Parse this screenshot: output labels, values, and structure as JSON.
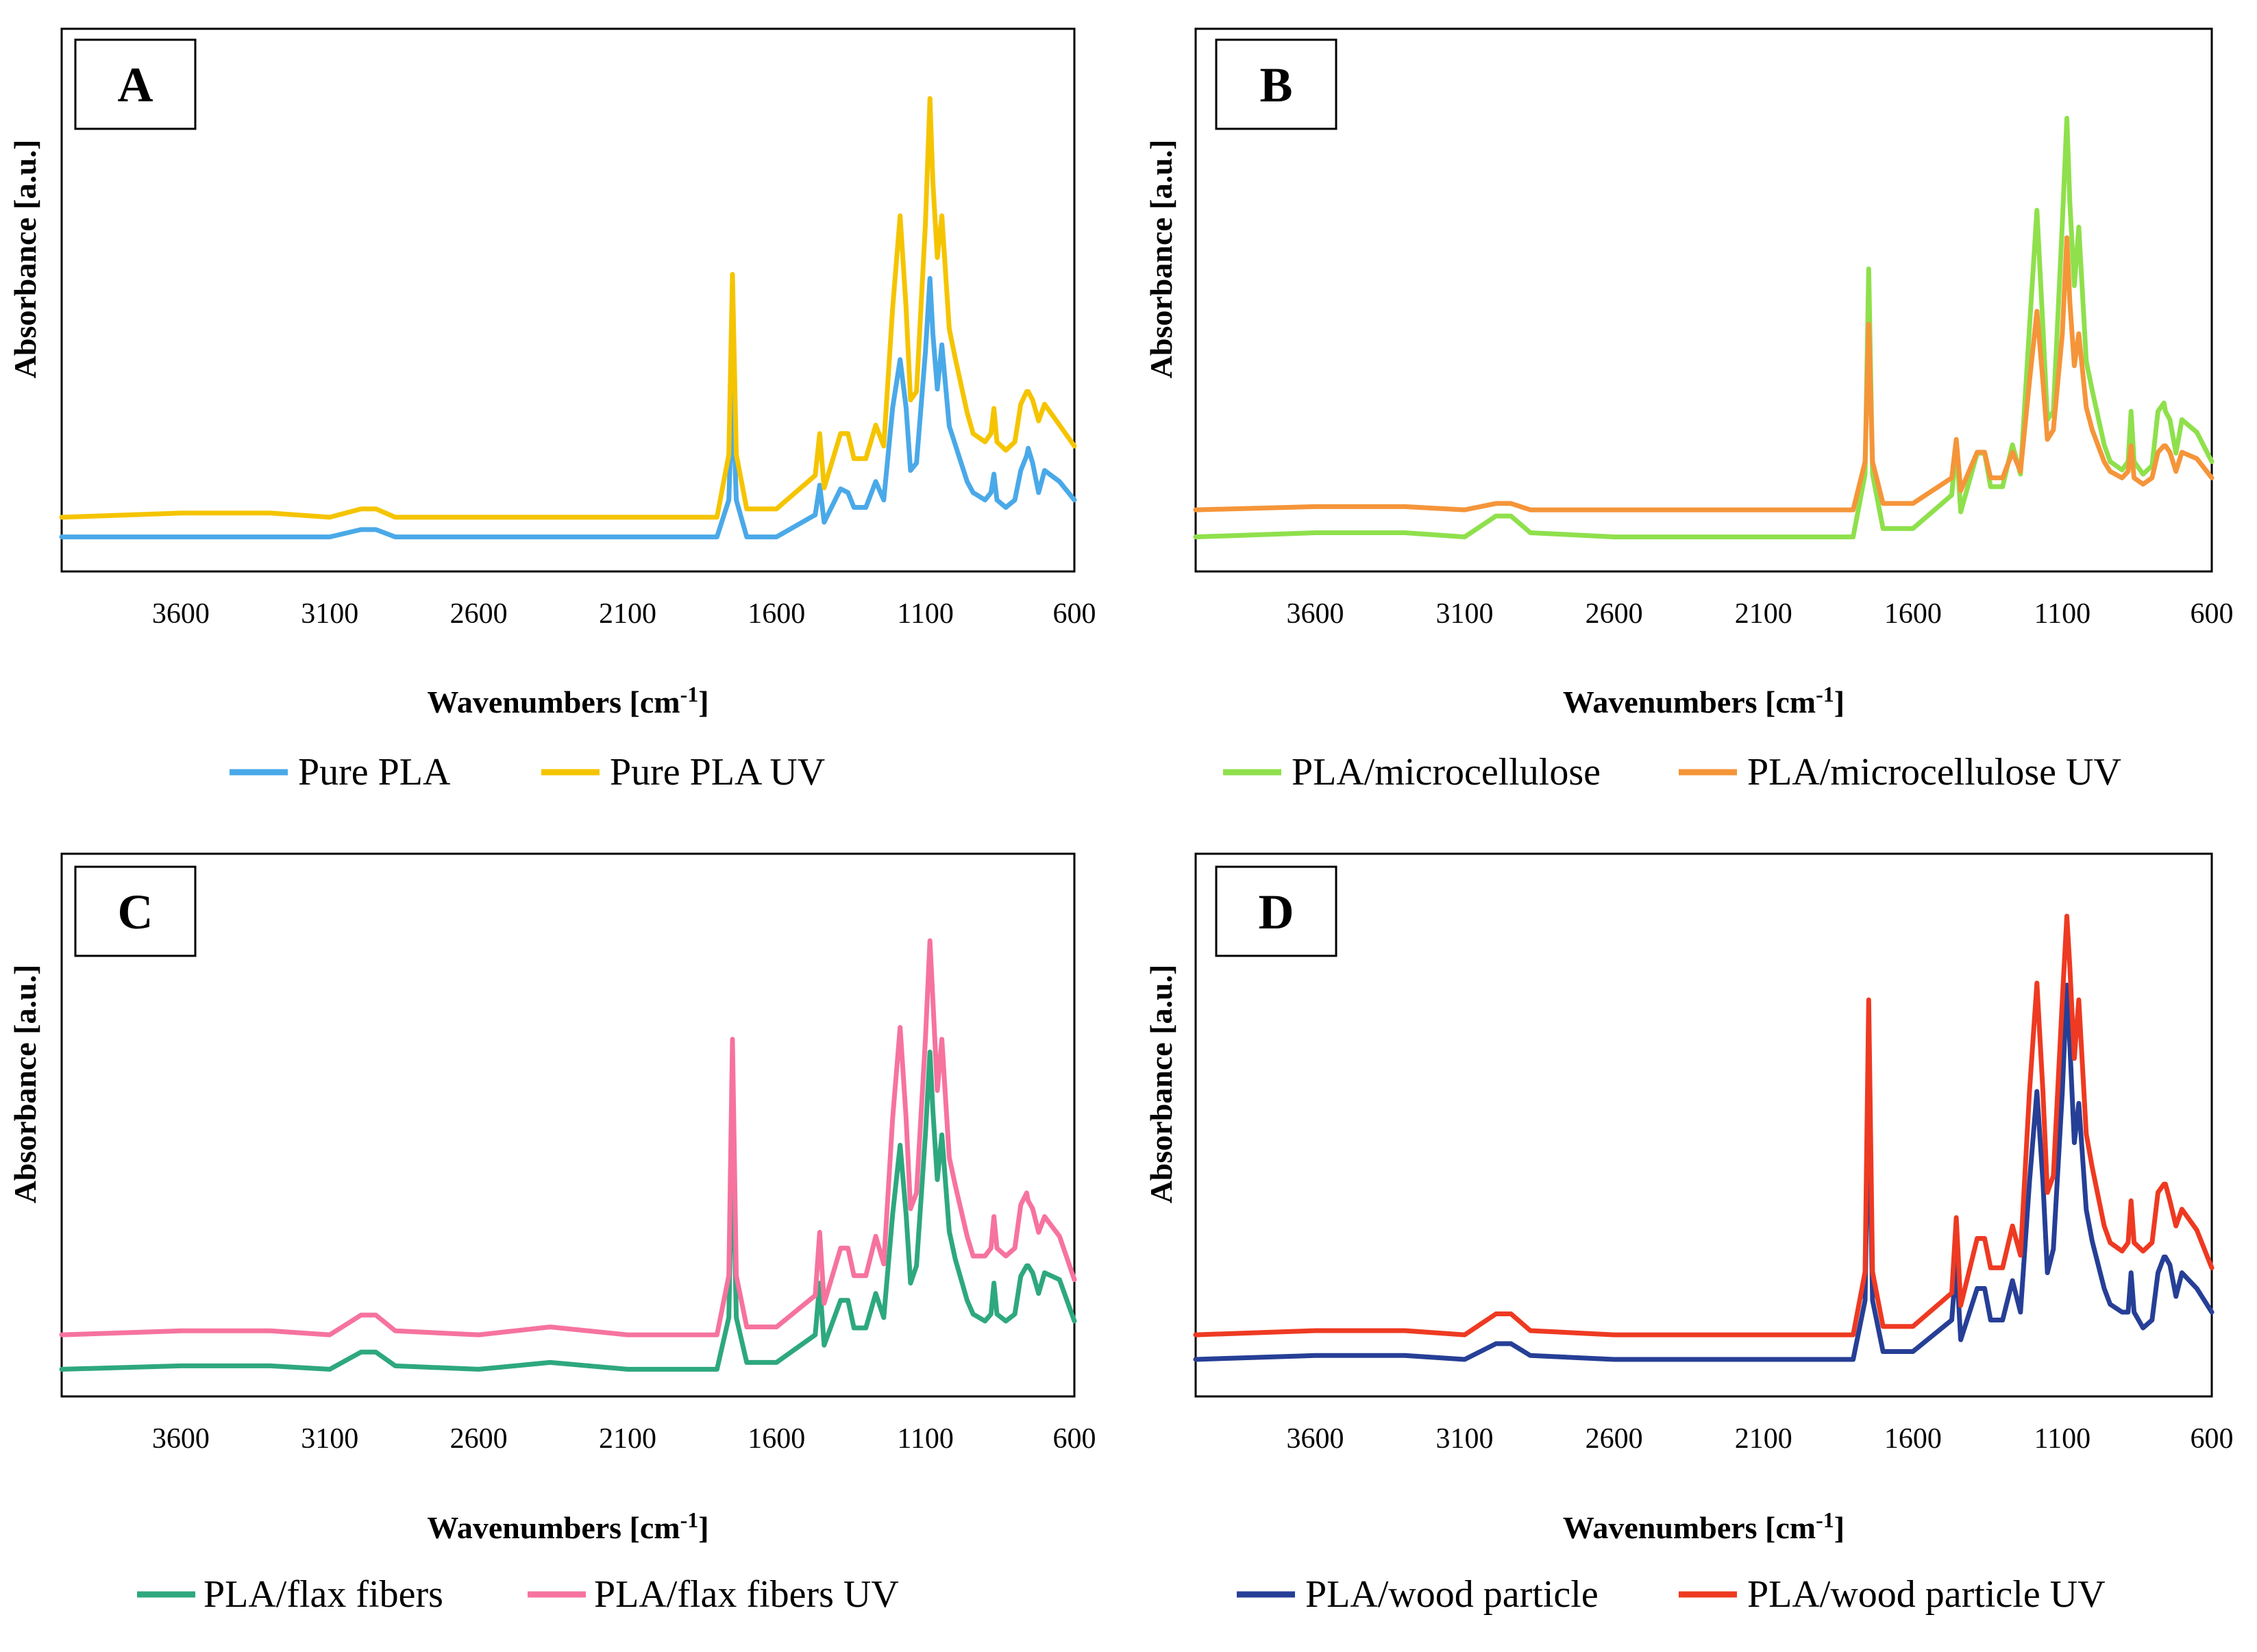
{
  "figure_title": "",
  "chart_data": [
    {
      "type": "line",
      "panel": "A",
      "xlabel": "Wavenumbers [cm-1]",
      "xlabel_main": "Wavenumbers [cm",
      "xlabel_sup": "-1",
      "xlabel_end": "]",
      "ylabel": "Absorbance  [a.u.]",
      "xlim": [
        4000,
        600
      ],
      "x_reversed": true,
      "ylim": [
        0,
        1
      ],
      "xticks": [
        3600,
        3100,
        2600,
        2100,
        1600,
        1100,
        600
      ],
      "series": [
        {
          "name": "Pure PLA",
          "color": "#4aa9e8",
          "baseline": 0.045,
          "scale": 0.75,
          "x": [
            4000,
            3600,
            3300,
            3100,
            2995,
            2945,
            2880,
            2600,
            2360,
            2100,
            1800,
            1760,
            1748,
            1735,
            1700,
            1650,
            1600,
            1470,
            1455,
            1440,
            1385,
            1360,
            1340,
            1300,
            1267,
            1240,
            1210,
            1185,
            1165,
            1150,
            1130,
            1100,
            1085,
            1075,
            1060,
            1045,
            1020,
            1000,
            960,
            940,
            900,
            880,
            870,
            860,
            830,
            800,
            780,
            760,
            755,
            740,
            720,
            700,
            650,
            600
          ],
          "y": [
            0.0,
            0.0,
            0.0,
            0.0,
            0.02,
            0.02,
            0.0,
            0.0,
            0.0,
            0.0,
            0.0,
            0.1,
            0.4,
            0.1,
            0.0,
            0.0,
            0.0,
            0.06,
            0.14,
            0.04,
            0.13,
            0.12,
            0.08,
            0.08,
            0.15,
            0.1,
            0.35,
            0.48,
            0.35,
            0.18,
            0.2,
            0.5,
            0.7,
            0.55,
            0.4,
            0.52,
            0.3,
            0.25,
            0.15,
            0.12,
            0.1,
            0.12,
            0.17,
            0.1,
            0.08,
            0.1,
            0.18,
            0.22,
            0.24,
            0.2,
            0.12,
            0.18,
            0.15,
            0.1
          ]
        },
        {
          "name": "Pure PLA UV",
          "color": "#f5c400",
          "baseline": 0.085,
          "scale": 0.85,
          "x": [
            4000,
            3600,
            3300,
            3100,
            2995,
            2945,
            2880,
            2600,
            2360,
            2100,
            1800,
            1760,
            1748,
            1735,
            1700,
            1650,
            1600,
            1470,
            1455,
            1440,
            1385,
            1360,
            1340,
            1300,
            1267,
            1240,
            1210,
            1185,
            1165,
            1150,
            1130,
            1100,
            1085,
            1075,
            1060,
            1045,
            1020,
            1000,
            960,
            940,
            900,
            880,
            870,
            860,
            830,
            800,
            780,
            760,
            755,
            740,
            720,
            700,
            650,
            600
          ],
          "y": [
            0.0,
            0.01,
            0.01,
            0.0,
            0.02,
            0.02,
            0.0,
            0.0,
            0.0,
            0.0,
            0.0,
            0.15,
            0.58,
            0.15,
            0.02,
            0.02,
            0.02,
            0.1,
            0.2,
            0.07,
            0.2,
            0.2,
            0.14,
            0.14,
            0.22,
            0.17,
            0.5,
            0.72,
            0.5,
            0.28,
            0.3,
            0.7,
            1.0,
            0.8,
            0.62,
            0.72,
            0.45,
            0.38,
            0.25,
            0.2,
            0.18,
            0.2,
            0.26,
            0.18,
            0.16,
            0.18,
            0.27,
            0.3,
            0.3,
            0.28,
            0.23,
            0.27,
            0.22,
            0.17
          ]
        }
      ]
    },
    {
      "type": "line",
      "panel": "B",
      "xlabel": "Wavenumbers [cm-1]",
      "xlabel_main": "Wavenumbers [cm",
      "xlabel_sup": "-1",
      "xlabel_end": "]",
      "ylabel": "Absorbance  [a.u.]",
      "xlim": [
        4000,
        600
      ],
      "x_reversed": true,
      "ylim": [
        0,
        1
      ],
      "xticks": [
        3600,
        3100,
        2600,
        2100,
        1600,
        1100,
        600
      ],
      "series": [
        {
          "name": "PLA/microcellulose",
          "color": "#8fe04c",
          "baseline": 0.045,
          "scale": 0.85,
          "x": [
            4000,
            3600,
            3300,
            3100,
            2995,
            2945,
            2880,
            2600,
            2360,
            2100,
            1800,
            1760,
            1748,
            1735,
            1700,
            1650,
            1600,
            1470,
            1455,
            1440,
            1385,
            1360,
            1340,
            1300,
            1267,
            1240,
            1210,
            1185,
            1165,
            1150,
            1130,
            1100,
            1085,
            1075,
            1060,
            1045,
            1020,
            1000,
            960,
            940,
            900,
            880,
            870,
            860,
            830,
            800,
            780,
            760,
            755,
            740,
            720,
            700,
            650,
            600
          ],
          "y": [
            0.0,
            0.01,
            0.01,
            0.0,
            0.05,
            0.05,
            0.01,
            0.0,
            0.0,
            0.0,
            0.0,
            0.15,
            0.64,
            0.15,
            0.02,
            0.02,
            0.02,
            0.1,
            0.22,
            0.06,
            0.2,
            0.2,
            0.12,
            0.12,
            0.22,
            0.15,
            0.5,
            0.78,
            0.5,
            0.28,
            0.3,
            0.75,
            1.0,
            0.8,
            0.6,
            0.74,
            0.42,
            0.35,
            0.22,
            0.18,
            0.16,
            0.18,
            0.3,
            0.18,
            0.15,
            0.17,
            0.3,
            0.32,
            0.3,
            0.28,
            0.2,
            0.28,
            0.25,
            0.18
          ]
        },
        {
          "name": "PLA/microcellulose UV",
          "color": "#f5953a",
          "baseline": 0.1,
          "scale": 0.65,
          "x": [
            4000,
            3600,
            3300,
            3100,
            2995,
            2945,
            2880,
            2600,
            2360,
            2100,
            1800,
            1760,
            1748,
            1735,
            1700,
            1650,
            1600,
            1470,
            1455,
            1440,
            1385,
            1360,
            1340,
            1300,
            1267,
            1240,
            1210,
            1185,
            1165,
            1150,
            1130,
            1100,
            1085,
            1075,
            1060,
            1045,
            1020,
            1000,
            960,
            940,
            900,
            880,
            870,
            860,
            830,
            800,
            780,
            760,
            755,
            740,
            720,
            700,
            650,
            600
          ],
          "y": [
            0.0,
            0.01,
            0.01,
            0.0,
            0.02,
            0.02,
            0.0,
            0.0,
            0.0,
            0.0,
            0.0,
            0.15,
            0.58,
            0.15,
            0.02,
            0.02,
            0.02,
            0.1,
            0.22,
            0.06,
            0.18,
            0.18,
            0.1,
            0.1,
            0.18,
            0.12,
            0.4,
            0.62,
            0.4,
            0.22,
            0.25,
            0.55,
            0.85,
            0.65,
            0.45,
            0.55,
            0.32,
            0.25,
            0.15,
            0.12,
            0.1,
            0.12,
            0.2,
            0.1,
            0.08,
            0.1,
            0.18,
            0.2,
            0.2,
            0.18,
            0.12,
            0.18,
            0.16,
            0.1
          ]
        }
      ]
    },
    {
      "type": "line",
      "panel": "C",
      "xlabel": "Wavenumbers [cm-1]",
      "xlabel_main": "Wavenumbers [cm",
      "xlabel_sup": "-1",
      "xlabel_end": "]",
      "ylabel": "Absorbance  [a.u.]",
      "xlim": [
        4000,
        600
      ],
      "x_reversed": true,
      "ylim": [
        0,
        1
      ],
      "xticks": [
        3600,
        3100,
        2600,
        2100,
        1600,
        1100,
        600
      ],
      "series": [
        {
          "name": "PLA/flax fibers",
          "color": "#2ea87e",
          "baseline": 0.03,
          "scale": 0.7,
          "x": [
            4000,
            3600,
            3300,
            3100,
            2995,
            2945,
            2880,
            2600,
            2360,
            2100,
            1800,
            1760,
            1748,
            1735,
            1700,
            1650,
            1600,
            1470,
            1455,
            1440,
            1385,
            1360,
            1340,
            1300,
            1267,
            1240,
            1210,
            1185,
            1165,
            1150,
            1130,
            1100,
            1085,
            1075,
            1060,
            1045,
            1020,
            1000,
            960,
            940,
            900,
            880,
            870,
            860,
            830,
            800,
            780,
            760,
            755,
            740,
            720,
            700,
            650,
            600
          ],
          "y": [
            0.0,
            0.01,
            0.01,
            0.0,
            0.05,
            0.05,
            0.01,
            0.0,
            0.02,
            0.0,
            0.0,
            0.15,
            0.7,
            0.15,
            0.02,
            0.02,
            0.02,
            0.1,
            0.25,
            0.07,
            0.2,
            0.2,
            0.12,
            0.12,
            0.22,
            0.15,
            0.45,
            0.65,
            0.45,
            0.25,
            0.3,
            0.68,
            0.92,
            0.75,
            0.55,
            0.68,
            0.4,
            0.32,
            0.2,
            0.16,
            0.14,
            0.16,
            0.25,
            0.16,
            0.14,
            0.16,
            0.27,
            0.3,
            0.3,
            0.28,
            0.22,
            0.28,
            0.26,
            0.14
          ]
        },
        {
          "name": "PLA/flax fibers UV",
          "color": "#f6739e",
          "baseline": 0.1,
          "scale": 0.8,
          "x": [
            4000,
            3600,
            3300,
            3100,
            2995,
            2945,
            2880,
            2600,
            2360,
            2100,
            1800,
            1760,
            1748,
            1735,
            1700,
            1650,
            1600,
            1470,
            1455,
            1440,
            1385,
            1360,
            1340,
            1300,
            1267,
            1240,
            1210,
            1185,
            1165,
            1150,
            1130,
            1100,
            1085,
            1075,
            1060,
            1045,
            1020,
            1000,
            960,
            940,
            900,
            880,
            870,
            860,
            830,
            800,
            780,
            760,
            755,
            740,
            720,
            700,
            650,
            600
          ],
          "y": [
            0.0,
            0.01,
            0.01,
            0.0,
            0.05,
            0.05,
            0.01,
            0.0,
            0.02,
            0.0,
            0.0,
            0.15,
            0.75,
            0.15,
            0.02,
            0.02,
            0.02,
            0.1,
            0.26,
            0.08,
            0.22,
            0.22,
            0.15,
            0.15,
            0.25,
            0.18,
            0.55,
            0.78,
            0.55,
            0.32,
            0.36,
            0.75,
            1.0,
            0.85,
            0.62,
            0.75,
            0.45,
            0.38,
            0.25,
            0.2,
            0.2,
            0.22,
            0.3,
            0.22,
            0.2,
            0.22,
            0.33,
            0.36,
            0.34,
            0.32,
            0.26,
            0.3,
            0.25,
            0.14
          ]
        }
      ]
    },
    {
      "type": "line",
      "panel": "D",
      "xlabel": "Wavenumbers [cm-1]",
      "xlabel_main": "Wavenumbers [cm",
      "xlabel_sup": "-1",
      "xlabel_end": "]",
      "ylabel": "Absorbance  [a.u.]",
      "xlim": [
        4000,
        600
      ],
      "x_reversed": true,
      "ylim": [
        0,
        1
      ],
      "xticks": [
        3600,
        3100,
        2600,
        2100,
        1600,
        1100,
        600
      ],
      "series": [
        {
          "name": "PLA/wood particle",
          "color": "#263f96",
          "baseline": 0.05,
          "scale": 0.8,
          "x": [
            4000,
            3600,
            3300,
            3100,
            2995,
            2945,
            2880,
            2600,
            2360,
            2100,
            1800,
            1760,
            1748,
            1735,
            1700,
            1650,
            1600,
            1470,
            1455,
            1440,
            1385,
            1360,
            1340,
            1300,
            1267,
            1240,
            1210,
            1185,
            1165,
            1150,
            1130,
            1100,
            1085,
            1075,
            1060,
            1045,
            1020,
            1000,
            960,
            940,
            900,
            880,
            870,
            860,
            830,
            800,
            780,
            760,
            755,
            740,
            720,
            700,
            650,
            600
          ],
          "y": [
            0.0,
            0.01,
            0.01,
            0.0,
            0.04,
            0.04,
            0.01,
            0.0,
            0.0,
            0.0,
            0.0,
            0.15,
            0.7,
            0.15,
            0.02,
            0.02,
            0.02,
            0.1,
            0.25,
            0.05,
            0.18,
            0.18,
            0.1,
            0.1,
            0.2,
            0.12,
            0.45,
            0.68,
            0.45,
            0.22,
            0.28,
            0.68,
            0.95,
            0.8,
            0.55,
            0.65,
            0.38,
            0.3,
            0.18,
            0.14,
            0.12,
            0.12,
            0.22,
            0.12,
            0.08,
            0.1,
            0.22,
            0.26,
            0.26,
            0.24,
            0.16,
            0.22,
            0.18,
            0.12
          ]
        },
        {
          "name": "PLA/wood particle UV",
          "color": "#ee3a22",
          "baseline": 0.1,
          "scale": 0.85,
          "x": [
            4000,
            3600,
            3300,
            3100,
            2995,
            2945,
            2880,
            2600,
            2360,
            2100,
            1800,
            1760,
            1748,
            1735,
            1700,
            1650,
            1600,
            1470,
            1455,
            1440,
            1385,
            1360,
            1340,
            1300,
            1267,
            1240,
            1210,
            1185,
            1165,
            1150,
            1130,
            1100,
            1085,
            1075,
            1060,
            1045,
            1020,
            1000,
            960,
            940,
            900,
            880,
            870,
            860,
            830,
            800,
            780,
            760,
            755,
            740,
            720,
            700,
            650,
            600
          ],
          "y": [
            0.0,
            0.01,
            0.01,
            0.0,
            0.05,
            0.05,
            0.01,
            0.0,
            0.0,
            0.0,
            0.0,
            0.15,
            0.8,
            0.15,
            0.02,
            0.02,
            0.02,
            0.1,
            0.28,
            0.07,
            0.23,
            0.23,
            0.16,
            0.16,
            0.26,
            0.19,
            0.58,
            0.84,
            0.58,
            0.34,
            0.38,
            0.8,
            1.0,
            0.88,
            0.66,
            0.8,
            0.48,
            0.4,
            0.26,
            0.22,
            0.2,
            0.22,
            0.32,
            0.22,
            0.2,
            0.22,
            0.34,
            0.36,
            0.36,
            0.32,
            0.26,
            0.3,
            0.25,
            0.16
          ]
        }
      ]
    }
  ]
}
